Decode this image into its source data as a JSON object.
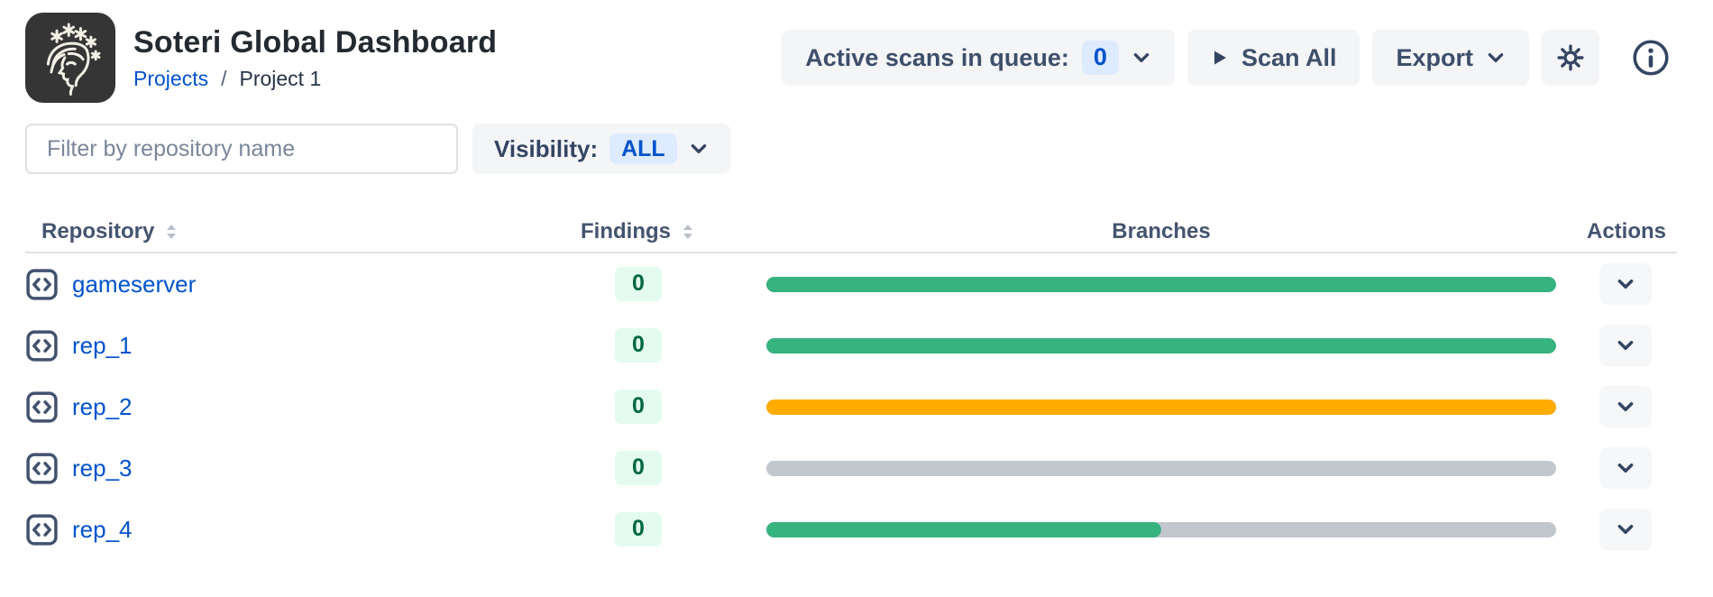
{
  "app": {
    "title": "Soteri Global Dashboard"
  },
  "breadcrumb": {
    "projects": "Projects",
    "separator": "/",
    "current": "Project 1"
  },
  "toolbar": {
    "queue_label": "Active scans in queue:",
    "queue_count": "0",
    "scan_all": "Scan All",
    "export": "Export"
  },
  "filterbar": {
    "filter_placeholder": "Filter by repository name",
    "visibility_label": "Visibility:",
    "visibility_value": "ALL"
  },
  "table": {
    "headers": {
      "repository": "Repository",
      "findings": "Findings",
      "branches": "Branches",
      "actions": "Actions"
    },
    "bar_track_color": "#C2C7CE",
    "rows": [
      {
        "name": "gameserver",
        "findings": "0",
        "bar": {
          "fill_color": "#36B37E",
          "fill_pct": 100
        }
      },
      {
        "name": "rep_1",
        "findings": "0",
        "bar": {
          "fill_color": "#36B37E",
          "fill_pct": 100
        }
      },
      {
        "name": "rep_2",
        "findings": "0",
        "bar": {
          "fill_color": "#FFAB00",
          "fill_pct": 100
        }
      },
      {
        "name": "rep_3",
        "findings": "0",
        "bar": {
          "fill_color": "#C2C7CE",
          "fill_pct": 100
        }
      },
      {
        "name": "rep_4",
        "findings": "0",
        "bar": {
          "fill_color": "#36B37E",
          "fill_pct": 50
        }
      }
    ]
  },
  "colors": {
    "link_blue": "#0052CC",
    "badge_blue_bg": "#DEEBFF",
    "green": "#36B37E",
    "amber": "#FFAB00",
    "gray_track": "#C2C7CE",
    "findings_badge_bg": "#E3FCEF",
    "findings_badge_text": "#006644",
    "button_bg": "#F4F5F7",
    "slate_text": "#344563"
  }
}
